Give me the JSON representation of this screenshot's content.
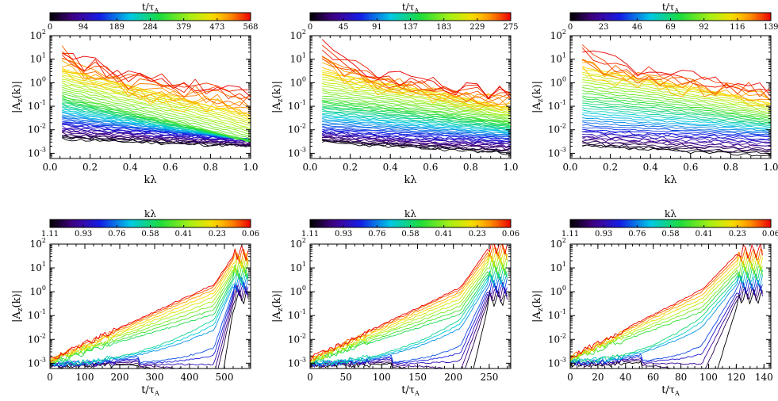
{
  "figure": {
    "y_label_main": "|A",
    "y_label_sub": "z",
    "y_label_end": "(k)|",
    "t_main": "t/τ",
    "t_sub": "A",
    "k_label": "kλ"
  },
  "chart_data": [
    {
      "id": "top-1",
      "type": "line",
      "row": 0,
      "col": 0,
      "xlabel": "kλ",
      "ylabel": "|Az(k)|",
      "xscale": "linear",
      "yscale": "log",
      "xlim": [
        0,
        1.0
      ],
      "ylim": [
        0.0006,
        100
      ],
      "x_ticks": [
        0,
        0.2,
        0.4,
        0.6,
        0.8,
        1.0
      ],
      "x_tick_labels": [
        "0.0",
        "0.2",
        "0.4",
        "0.6",
        "0.8",
        "1.0"
      ],
      "colorbar": {
        "label": "t/τA",
        "tick_labels": [
          "0",
          "94",
          "189",
          "284",
          "379",
          "473",
          "568"
        ],
        "reversed": false
      },
      "series_count": 60,
      "seed": 11,
      "x_range": [
        0.06,
        1.0
      ],
      "start_values": {
        "early": [
          0.004,
          0.002
        ],
        "mid_low": [
          0.02,
          0.004
        ],
        "mid_high": [
          0.3,
          0.003
        ],
        "late": [
          40,
          0.4
        ]
      }
    },
    {
      "id": "top-2",
      "type": "line",
      "row": 0,
      "col": 1,
      "xlabel": "kλ",
      "ylabel": "|Az(k)|",
      "xscale": "linear",
      "yscale": "log",
      "xlim": [
        0,
        1.0
      ],
      "ylim": [
        0.0006,
        100
      ],
      "x_ticks": [
        0,
        0.2,
        0.4,
        0.6,
        0.8,
        1.0
      ],
      "x_tick_labels": [
        "0.0",
        "0.2",
        "0.4",
        "0.6",
        "0.8",
        "1.0"
      ],
      "colorbar": {
        "label": "t/τA",
        "tick_labels": [
          "0",
          "45",
          "91",
          "137",
          "183",
          "229",
          "275"
        ],
        "reversed": false
      },
      "series_count": 60,
      "seed": 23,
      "x_range": [
        0.06,
        1.0
      ],
      "start_values": {
        "early": [
          0.003,
          0.001
        ],
        "mid_low": [
          0.01,
          0.004
        ],
        "mid_high": [
          0.2,
          0.02
        ],
        "late": [
          40,
          0.3
        ]
      }
    },
    {
      "id": "top-3",
      "type": "line",
      "row": 0,
      "col": 2,
      "xlabel": "kλ",
      "ylabel": "|Az(k)|",
      "xscale": "linear",
      "yscale": "log",
      "xlim": [
        0,
        1.0
      ],
      "ylim": [
        0.0006,
        100
      ],
      "x_ticks": [
        0,
        0.2,
        0.4,
        0.6,
        0.8,
        1.0
      ],
      "x_tick_labels": [
        "0.0",
        "0.2",
        "0.4",
        "0.6",
        "0.8",
        "1.0"
      ],
      "colorbar": {
        "label": "t/τA",
        "tick_labels": [
          "0",
          "23",
          "46",
          "69",
          "92",
          "116",
          "139"
        ],
        "reversed": false
      },
      "series_count": 45,
      "seed": 37,
      "x_range": [
        0.06,
        1.0
      ],
      "start_values": {
        "early": [
          0.002,
          0.0008
        ],
        "mid_low": [
          0.01,
          0.005
        ],
        "mid_high": [
          0.4,
          0.03
        ],
        "late": [
          40,
          0.5
        ]
      }
    },
    {
      "id": "bottom-1",
      "type": "line",
      "row": 1,
      "col": 0,
      "xlabel": "t/τA",
      "ylabel": "|Az(k)|",
      "xscale": "linear",
      "yscale": "log",
      "xlim": [
        0,
        575
      ],
      "ylim": [
        0.0006,
        100
      ],
      "x_ticks": [
        0,
        100,
        200,
        300,
        400,
        500
      ],
      "x_tick_labels": [
        "0",
        "100",
        "200",
        "300",
        "400",
        "500"
      ],
      "colorbar": {
        "label": "kλ",
        "tick_labels": [
          "1.11",
          "0.93",
          "0.76",
          "0.58",
          "0.41",
          "0.23",
          "0.06"
        ],
        "reversed": false
      },
      "series_count": 18,
      "seed": 5,
      "t_end": 568,
      "t_jump": 470,
      "start_level": [
        0.0014,
        0.0008
      ],
      "pre_jump": [
        2.0,
        0.0009
      ],
      "final": [
        45,
        0.6
      ]
    },
    {
      "id": "bottom-2",
      "type": "line",
      "row": 1,
      "col": 1,
      "xlabel": "t/τA",
      "ylabel": "|Az(k)|",
      "xscale": "linear",
      "yscale": "log",
      "xlim": [
        0,
        280
      ],
      "ylim": [
        0.0006,
        100
      ],
      "x_ticks": [
        0,
        50,
        100,
        150,
        200,
        250
      ],
      "x_tick_labels": [
        "0",
        "50",
        "100",
        "150",
        "200",
        "250"
      ],
      "colorbar": {
        "label": "kλ",
        "tick_labels": [
          "1.11",
          "0.93",
          "0.76",
          "0.58",
          "0.41",
          "0.23",
          "0.06"
        ],
        "reversed": false
      },
      "series_count": 18,
      "seed": 9,
      "t_end": 275,
      "t_jump": 210,
      "start_level": [
        0.0015,
        0.0008
      ],
      "pre_jump": [
        1.5,
        0.0015
      ],
      "final": [
        80,
        0.5
      ]
    },
    {
      "id": "bottom-3",
      "type": "line",
      "row": 1,
      "col": 2,
      "xlabel": "t/τA",
      "ylabel": "|Az(k)|",
      "xscale": "linear",
      "yscale": "log",
      "xlim": [
        0,
        145
      ],
      "ylim": [
        0.0006,
        100
      ],
      "x_ticks": [
        0,
        20,
        40,
        60,
        80,
        100,
        120,
        140
      ],
      "x_tick_labels": [
        "0",
        "20",
        "40",
        "60",
        "80",
        "100",
        "120",
        "140"
      ],
      "colorbar": {
        "label": "kλ",
        "tick_labels": [
          "1.11",
          "0.93",
          "0.76",
          "0.58",
          "0.41",
          "0.23",
          "0.06"
        ],
        "reversed": false
      },
      "series_count": 15,
      "seed": 17,
      "t_end": 139,
      "t_jump": 95,
      "start_level": [
        0.0018,
        0.0009
      ],
      "pre_jump": [
        1.2,
        0.002
      ],
      "final": [
        50,
        0.6
      ]
    }
  ]
}
